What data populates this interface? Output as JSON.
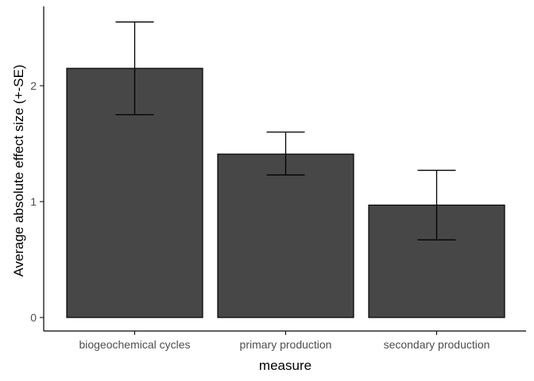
{
  "chart_data": {
    "type": "bar",
    "title": "",
    "xlabel": "measure",
    "ylabel": "Average absolute effect size (+-SE)",
    "categories": [
      "biogeochemical cycles",
      "primary production",
      "secondary production"
    ],
    "values": [
      2.15,
      1.41,
      0.97
    ],
    "error_low": [
      1.75,
      1.23,
      0.67
    ],
    "error_high": [
      2.55,
      1.6,
      1.27
    ],
    "ylim": [
      0,
      2.68
    ],
    "yticks": [
      0,
      1,
      2
    ],
    "grid": false,
    "legend": "none",
    "colors": {
      "bar_fill": "#474747",
      "bar_stroke": "#000000",
      "error_bar": "#000000",
      "axis": "#000000"
    }
  }
}
